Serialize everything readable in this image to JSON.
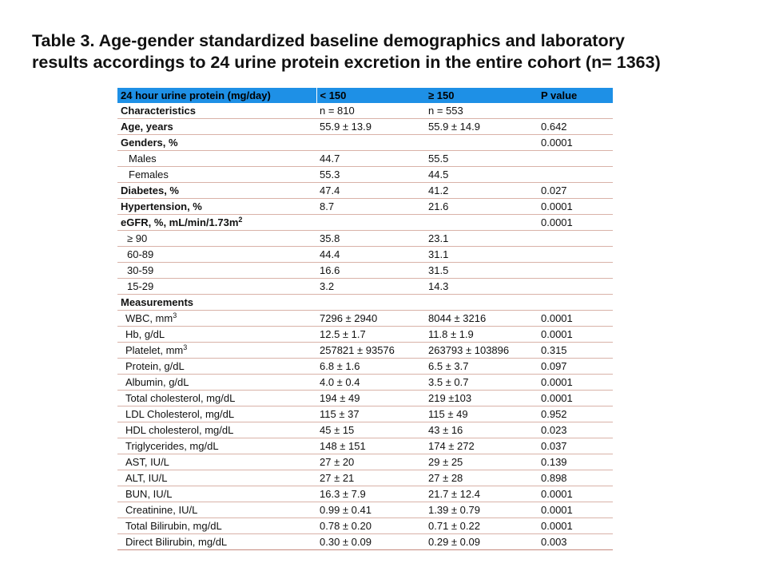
{
  "colors": {
    "header_bg": "#1e90e6",
    "row_rule": "#d9b2a8",
    "row_rule_last": "#c58a7e",
    "text": "#111111"
  },
  "title": {
    "line1": "Table 3. Age-gender standardized baseline demographics and laboratory",
    "line2": "results accordings to 24 urine protein excretion in the entire cohort (n= 1363)"
  },
  "table": {
    "headers": [
      "24 hour urine protein (mg/day)",
      "< 150",
      "≥ 150",
      "P value"
    ],
    "rows": [
      {
        "label": "Characteristics",
        "sup": "",
        "style": "bold",
        "c1": "n = 810",
        "c2": "n = 553",
        "c3": ""
      },
      {
        "label": "Age, years",
        "sup": "",
        "style": "bold",
        "c1": "55.9 ± 13.9",
        "c2": "55.9 ± 14.9",
        "c3": "0.642"
      },
      {
        "label": "Genders, %",
        "sup": "",
        "style": "bold",
        "c1": "",
        "c2": "",
        "c3": "0.0001"
      },
      {
        "label": "Males",
        "sup": "",
        "style": "indent1",
        "c1": "44.7",
        "c2": "55.5",
        "c3": ""
      },
      {
        "label": "Females",
        "sup": "",
        "style": "indent1",
        "c1": "55.3",
        "c2": "44.5",
        "c3": ""
      },
      {
        "label": "Diabetes, %",
        "sup": "",
        "style": "bold",
        "c1": "47.4",
        "c2": "41.2",
        "c3": "0.027"
      },
      {
        "label": "Hypertension, %",
        "sup": "",
        "style": "bold",
        "c1": "8.7",
        "c2": "21.6",
        "c3": "0.0001"
      },
      {
        "label": "eGFR, %, mL/min/1.73m",
        "sup": "2",
        "style": "bold",
        "c1": "",
        "c2": "",
        "c3": "0.0001"
      },
      {
        "label": "≥ 90",
        "sup": "",
        "style": "indent2",
        "c1": "35.8",
        "c2": "23.1",
        "c3": ""
      },
      {
        "label": "60-89",
        "sup": "",
        "style": "indent2",
        "c1": "44.4",
        "c2": "31.1",
        "c3": ""
      },
      {
        "label": "30-59",
        "sup": "",
        "style": "indent2",
        "c1": "16.6",
        "c2": "31.5",
        "c3": ""
      },
      {
        "label": "15-29",
        "sup": "",
        "style": "indent2",
        "c1": "3.2",
        "c2": "14.3",
        "c3": ""
      },
      {
        "label": "Measurements",
        "sup": "",
        "style": "bold",
        "c1": "",
        "c2": "",
        "c3": ""
      },
      {
        "label": "WBC, mm",
        "sup": "3",
        "style": "indent3",
        "c1": "7296 ± 2940",
        "c2": "8044 ± 3216",
        "c3": "0.0001"
      },
      {
        "label": "Hb, g/dL",
        "sup": "",
        "style": "indent3",
        "c1": "12.5 ± 1.7",
        "c2": "11.8 ± 1.9",
        "c3": "0.0001"
      },
      {
        "label": "Platelet, mm",
        "sup": "3",
        "style": "indent3",
        "c1": "257821 ± 93576",
        "c2": "263793 ± 103896",
        "c3": "0.315"
      },
      {
        "label": "Protein, g/dL",
        "sup": "",
        "style": "indent3",
        "c1": "6.8 ± 1.6",
        "c2": "6.5 ± 3.7",
        "c3": "0.097"
      },
      {
        "label": "Albumin, g/dL",
        "sup": "",
        "style": "indent4",
        "c1": "4.0 ± 0.4",
        "c2": "3.5 ± 0.7",
        "c3": "0.0001"
      },
      {
        "label": "Total cholesterol, mg/dL",
        "sup": "",
        "style": "indent3",
        "c1": "194 ± 49",
        "c2": "219 ±103",
        "c3": "0.0001"
      },
      {
        "label": "LDL Cholesterol, mg/dL",
        "sup": "",
        "style": "indent3",
        "c1": "115 ± 37",
        "c2": "115 ± 49",
        "c3": "0.952"
      },
      {
        "label": "HDL cholesterol, mg/dL",
        "sup": "",
        "style": "indent3",
        "c1": "45 ± 15",
        "c2": "43 ± 16",
        "c3": "0.023"
      },
      {
        "label": "Triglycerides, mg/dL",
        "sup": "",
        "style": "indent3",
        "c1": "148 ± 151",
        "c2": "174 ± 272",
        "c3": "0.037"
      },
      {
        "label": "AST, IU/L",
        "sup": "",
        "style": "indent3",
        "c1": "27 ± 20",
        "c2": "29 ± 25",
        "c3": "0.139"
      },
      {
        "label": "ALT, IU/L",
        "sup": "",
        "style": "indent3",
        "c1": "27 ± 21",
        "c2": "27 ± 28",
        "c3": "0.898"
      },
      {
        "label": "BUN, IU/L",
        "sup": "",
        "style": "indent3",
        "c1": "16.3 ± 7.9",
        "c2": "21.7 ± 12.4",
        "c3": "0.0001"
      },
      {
        "label": "Creatinine, IU/L",
        "sup": "",
        "style": "indent3",
        "c1": "0.99 ± 0.41",
        "c2": "1.39 ± 0.79",
        "c3": "0.0001"
      },
      {
        "label": "Total Bilirubin, mg/dL",
        "sup": "",
        "style": "indent3",
        "c1": "0.78 ± 0.20",
        "c2": "0.71 ± 0.22",
        "c3": "0.0001"
      },
      {
        "label": "Direct Bilirubin, mg/dL",
        "sup": "",
        "style": "indent3",
        "c1": "0.30 ± 0.09",
        "c2": "0.29 ± 0.09",
        "c3": "0.003"
      }
    ]
  }
}
